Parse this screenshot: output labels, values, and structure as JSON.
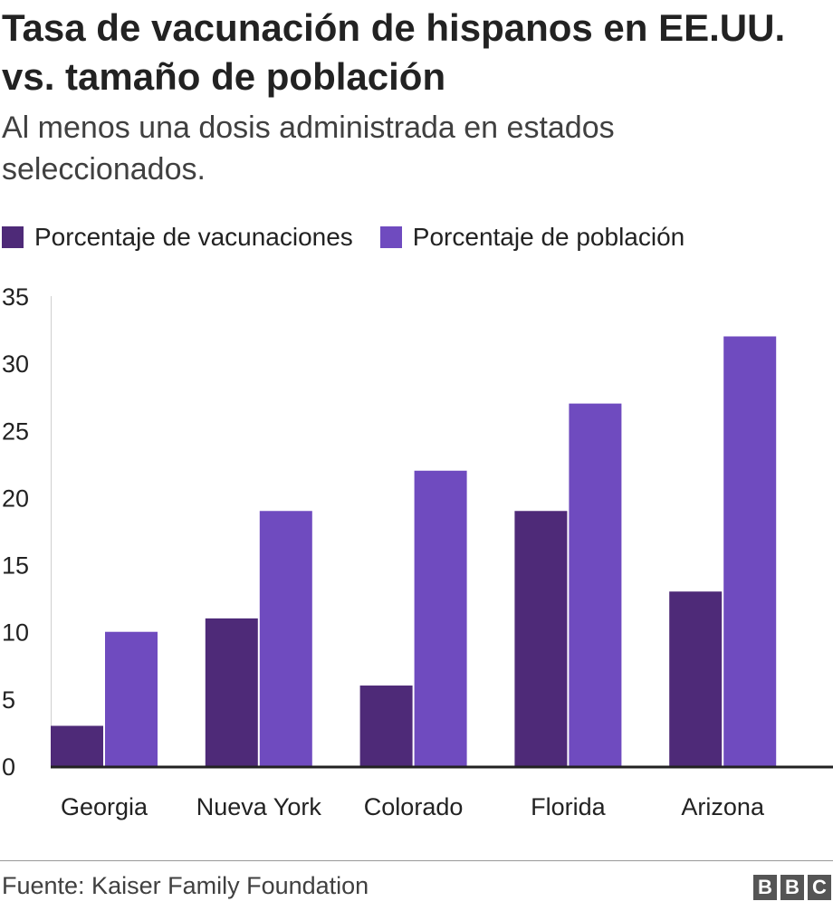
{
  "title": "Tasa de vacunación de hispanos en EE.UU. vs. tamaño de población",
  "subtitle": "Al menos una dosis administrada en estados seleccionados.",
  "source": "Fuente: Kaiser Family Foundation",
  "logo": [
    "B",
    "B",
    "C"
  ],
  "colors": {
    "vaccinations": "#4e2a78",
    "population": "#6f4bbf"
  },
  "chart_data": {
    "type": "bar",
    "categories": [
      "Georgia",
      "Nueva York",
      "Colorado",
      "Florida",
      "Arizona"
    ],
    "series": [
      {
        "name": "Porcentaje de vacunaciones",
        "values": [
          3,
          11,
          6,
          19,
          13
        ]
      },
      {
        "name": "Porcentaje de población",
        "values": [
          10,
          19,
          22,
          27,
          32
        ]
      }
    ],
    "title": "Tasa de vacunación de hispanos en EE.UU. vs. tamaño de población",
    "subtitle": "Al menos una dosis administrada en estados seleccionados.",
    "xlabel": "",
    "ylabel": "",
    "ylim": [
      0,
      35
    ],
    "yticks": [
      0,
      5,
      10,
      15,
      20,
      25,
      30,
      35
    ],
    "legend": "top-left",
    "grid": false
  }
}
